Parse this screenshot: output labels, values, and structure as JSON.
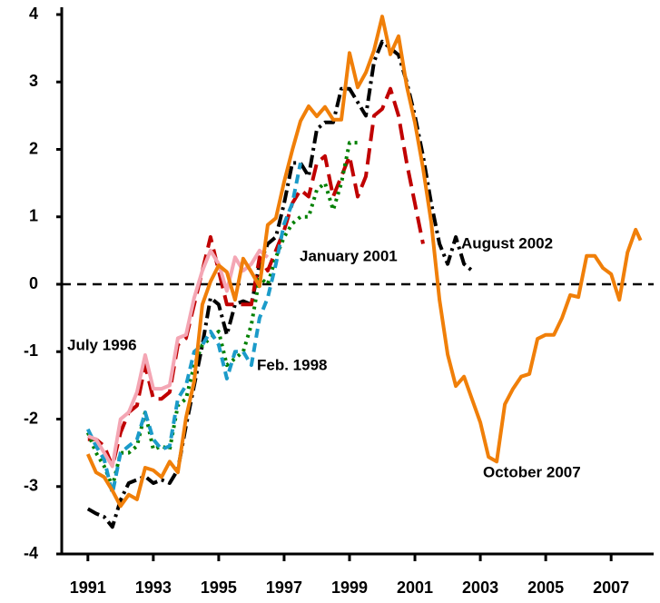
{
  "chart_data": {
    "type": "line",
    "xlim": [
      1990.2,
      2008.3
    ],
    "xticks": [
      1991,
      1993,
      1995,
      1997,
      1999,
      2001,
      2003,
      2005,
      2007
    ],
    "ylim": [
      -4,
      4
    ],
    "yticks": [
      -4,
      -3,
      -2,
      -1,
      0,
      1,
      2,
      3,
      4
    ],
    "hline": 0,
    "series": [
      {
        "name": "August 2002",
        "color": "#000000",
        "dash": "14 5 3 5",
        "x": [
          1991,
          1991.25,
          1991.5,
          1991.75,
          1992,
          1992.25,
          1992.5,
          1992.75,
          1993,
          1993.25,
          1993.5,
          1993.75,
          1994,
          1994.25,
          1994.5,
          1994.75,
          1995,
          1995.25,
          1995.5,
          1995.75,
          1996,
          1996.25,
          1996.5,
          1996.75,
          1997,
          1997.25,
          1997.5,
          1997.75,
          1998,
          1998.25,
          1998.5,
          1998.75,
          1999,
          1999.25,
          1999.5,
          1999.75,
          2000,
          2000.25,
          2000.5,
          2000.75,
          2001,
          2001.25,
          2001.5,
          2001.75,
          2002,
          2002.25,
          2002.5,
          2002.75
        ],
        "values": [
          -3.33,
          -3.4,
          -3.45,
          -3.6,
          -3.2,
          -2.95,
          -2.9,
          -2.85,
          -2.95,
          -2.9,
          -2.95,
          -2.75,
          -2.1,
          -1.5,
          -0.9,
          -0.2,
          -0.3,
          -0.75,
          -0.3,
          -0.25,
          -0.3,
          0.3,
          0.6,
          0.7,
          1.2,
          1.8,
          1.8,
          1.6,
          2.3,
          2.4,
          2.4,
          2.9,
          2.9,
          2.7,
          2.5,
          3.3,
          3.6,
          3.5,
          3.4,
          3.0,
          2.5,
          1.9,
          1.2,
          0.6,
          0.3,
          0.7,
          0.3,
          0.2
        ]
      },
      {
        "name": "January 2001",
        "color": "#c00000",
        "dash": "18 8",
        "x": [
          1991,
          1991.25,
          1991.5,
          1991.75,
          1992,
          1992.25,
          1992.5,
          1992.75,
          1993,
          1993.25,
          1993.5,
          1993.75,
          1994,
          1994.25,
          1994.5,
          1994.75,
          1995,
          1995.25,
          1995.5,
          1995.75,
          1996,
          1996.25,
          1996.5,
          1996.75,
          1997,
          1997.25,
          1997.5,
          1997.75,
          1998,
          1998.25,
          1998.5,
          1998.75,
          1999,
          1999.25,
          1999.5,
          1999.75,
          2000,
          2000.25,
          2000.5,
          2000.75,
          2001,
          2001.25
        ],
        "values": [
          -2.3,
          -2.3,
          -2.4,
          -2.7,
          -2.2,
          -1.9,
          -1.8,
          -1.2,
          -1.7,
          -1.7,
          -1.6,
          -0.9,
          -0.8,
          -0.3,
          0.2,
          0.7,
          0.2,
          -0.3,
          -0.3,
          -0.3,
          -0.3,
          0.4,
          0.2,
          0.5,
          0.8,
          1.2,
          1.4,
          1.3,
          1.8,
          1.9,
          1.3,
          1.6,
          1.9,
          1.3,
          1.6,
          2.5,
          2.6,
          2.9,
          2.5,
          1.8,
          1.2,
          0.6
        ]
      },
      {
        "color": "#008000",
        "dash": "3 5",
        "x": [
          1991,
          1991.25,
          1991.5,
          1991.75,
          1992,
          1992.25,
          1992.5,
          1992.75,
          1993,
          1993.25,
          1993.5,
          1993.75,
          1994,
          1994.25,
          1994.5,
          1994.75,
          1995,
          1995.25,
          1995.5,
          1995.75,
          1996,
          1996.25,
          1996.5,
          1996.75,
          1997,
          1997.25,
          1997.5,
          1997.75,
          1998,
          1998.25,
          1998.5,
          1998.75,
          1999,
          1999.25
        ],
        "values": [
          -2.2,
          -2.5,
          -2.7,
          -3.0,
          -2.5,
          -2.5,
          -2.4,
          -1.9,
          -2.45,
          -2.4,
          -2.45,
          -1.8,
          -1.7,
          -1.2,
          -0.9,
          -0.8,
          -0.7,
          -1.2,
          -1.1,
          -1.0,
          -0.6,
          0.1,
          0,
          0.4,
          0.7,
          0.9,
          1.0,
          1.0,
          1.4,
          1.5,
          1.1,
          1.5,
          2.1,
          2.1
        ]
      },
      {
        "name": "Feb. 1998",
        "color": "#1b9bc9",
        "dash": "10 6",
        "x": [
          1991,
          1991.25,
          1991.5,
          1991.75,
          1992,
          1992.25,
          1992.5,
          1992.75,
          1993,
          1993.25,
          1993.5,
          1993.75,
          1994,
          1994.25,
          1994.5,
          1994.75,
          1995,
          1995.25,
          1995.5,
          1995.75,
          1996,
          1996.25,
          1996.5,
          1996.75,
          1997,
          1997.25,
          1997.5
        ],
        "values": [
          -2.15,
          -2.4,
          -2.6,
          -3.1,
          -2.5,
          -2.4,
          -2.3,
          -1.9,
          -2.3,
          -2.45,
          -2.4,
          -1.7,
          -1.5,
          -1.0,
          -0.9,
          -0.7,
          -0.9,
          -1.4,
          -1.0,
          -1.0,
          -1.2,
          -0.5,
          -0.2,
          0.3,
          0.9,
          1.2,
          1.8
        ]
      },
      {
        "name": "July 1996",
        "color": "#f4a6b4",
        "dash": "none",
        "x": [
          1991,
          1991.25,
          1991.5,
          1991.75,
          1992,
          1992.25,
          1992.5,
          1992.75,
          1993,
          1993.25,
          1993.5,
          1993.75,
          1994,
          1994.25,
          1994.5,
          1994.75,
          1995,
          1995.25,
          1995.5,
          1995.75,
          1996,
          1996.25,
          1996.5
        ],
        "values": [
          -2.25,
          -2.3,
          -2.5,
          -2.7,
          -2.0,
          -1.9,
          -1.6,
          -1.05,
          -1.55,
          -1.55,
          -1.5,
          -0.8,
          -0.75,
          -0.2,
          0.2,
          0.5,
          0.3,
          -0.1,
          0.4,
          0.2,
          0.3,
          0.5,
          0.4
        ]
      },
      {
        "name": "October 2007",
        "color": "#f07f09",
        "dash": "none",
        "x": [
          1991,
          1991.25,
          1991.5,
          1991.75,
          1992,
          1992.25,
          1992.5,
          1992.75,
          1993,
          1993.25,
          1993.5,
          1993.75,
          1994,
          1994.25,
          1994.5,
          1994.75,
          1995,
          1995.25,
          1995.5,
          1995.75,
          1996,
          1996.25,
          1996.5,
          1996.75,
          1997,
          1997.25,
          1997.5,
          1997.75,
          1998,
          1998.25,
          1998.5,
          1998.75,
          1999,
          1999.25,
          1999.5,
          1999.75,
          2000,
          2000.25,
          2000.5,
          2000.75,
          2001,
          2001.25,
          2001.5,
          2001.75,
          2002,
          2002.25,
          2002.5,
          2002.75,
          2003,
          2003.25,
          2003.5,
          2003.75,
          2004,
          2004.25,
          2004.5,
          2004.75,
          2005,
          2005.25,
          2005.5,
          2005.75,
          2006,
          2006.25,
          2006.5,
          2006.75,
          2007,
          2007.25,
          2007.5,
          2007.75,
          2007.9
        ],
        "values": [
          -2.52,
          -2.79,
          -2.86,
          -3.06,
          -3.29,
          -3.12,
          -3.19,
          -2.72,
          -2.76,
          -2.86,
          -2.63,
          -2.79,
          -1.98,
          -1.44,
          -0.3,
          0.04,
          0.28,
          0.18,
          -0.23,
          0.38,
          0.18,
          -0.03,
          0.88,
          0.98,
          1.52,
          1.99,
          2.42,
          2.64,
          2.49,
          2.63,
          2.44,
          2.44,
          3.43,
          2.92,
          3.14,
          3.47,
          3.97,
          3.41,
          3.68,
          2.94,
          2.4,
          1.72,
          0.92,
          -0.23,
          -1.04,
          -1.51,
          -1.37,
          -1.71,
          -2.05,
          -2.56,
          -2.63,
          -1.78,
          -1.55,
          -1.37,
          -1.33,
          -0.81,
          -0.75,
          -0.75,
          -0.5,
          -0.16,
          -0.19,
          0.42,
          0.42,
          0.24,
          0.15,
          -0.23,
          0.47,
          0.81,
          0.65
        ]
      }
    ]
  }
}
